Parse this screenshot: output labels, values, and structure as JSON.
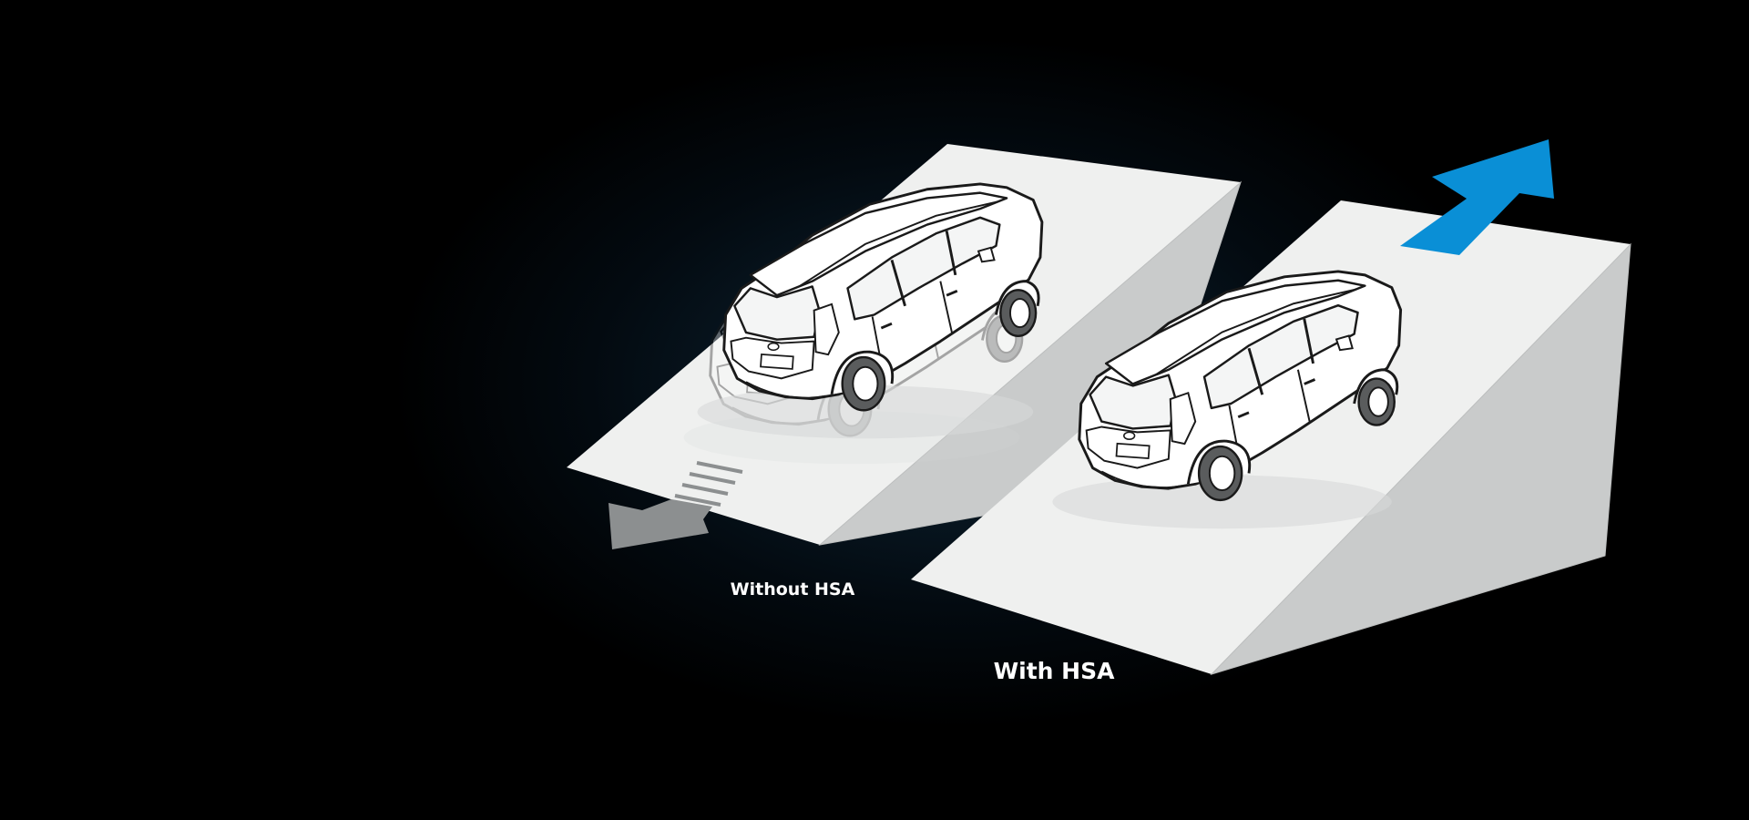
{
  "labels": {
    "without": "Without HSA",
    "with": "With HSA"
  },
  "colors": {
    "background": "#000000",
    "ramp_top": "#eff0ef",
    "ramp_side": "#c9cbcb",
    "arrow_up": "#0a8fd6",
    "arrow_down": "#8c8f90",
    "car_outline": "#1a1a1a"
  },
  "icons": {
    "uphill_arrow": "arrow-up-right-icon",
    "rollback_arrow": "arrow-down-left-icon"
  }
}
